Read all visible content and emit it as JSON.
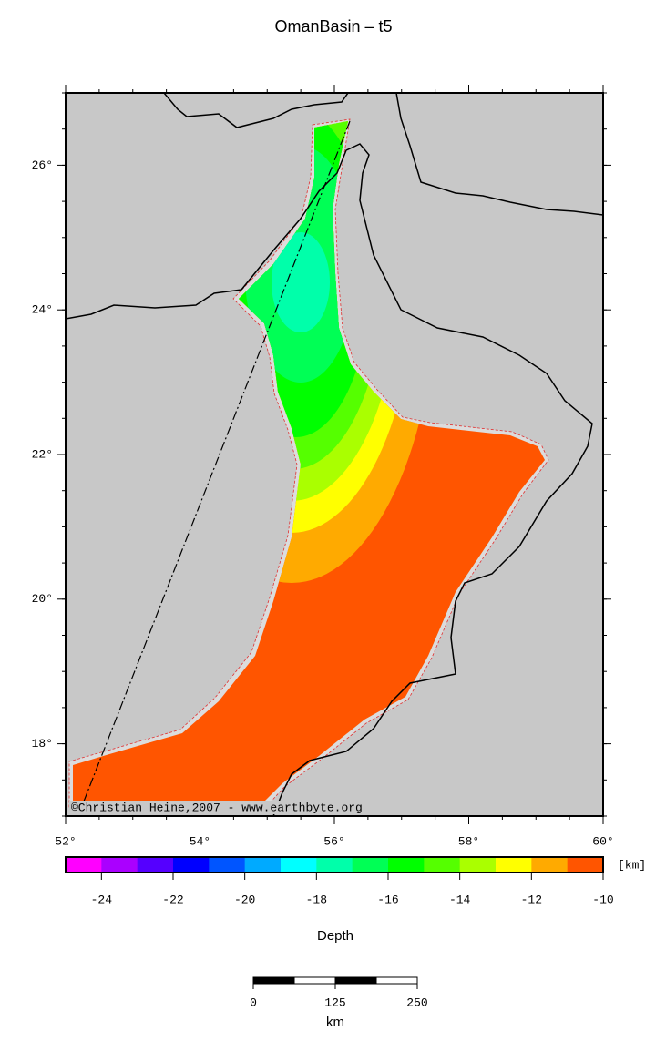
{
  "title": "OmanBasin – t5",
  "map": {
    "xlim": [
      52,
      60
    ],
    "ylim": [
      17,
      27
    ],
    "xticks": [
      {
        "value": 52,
        "label": "52°"
      },
      {
        "value": 54,
        "label": "54°"
      },
      {
        "value": 56,
        "label": "56°"
      },
      {
        "value": 58,
        "label": "58°"
      },
      {
        "value": 60,
        "label": "60°"
      }
    ],
    "yticks": [
      {
        "value": 18,
        "label": "18°"
      },
      {
        "value": 20,
        "label": "20°"
      },
      {
        "value": 22,
        "label": "22°"
      },
      {
        "value": 24,
        "label": "24°"
      },
      {
        "value": 26,
        "label": "26°"
      }
    ],
    "credit": "©Christian Heine,2007 - www.earthbyte.org"
  },
  "colorbar": {
    "clim": [
      -25,
      -10
    ],
    "colors": [
      "#ff00ff",
      "#aa00ff",
      "#5500ff",
      "#0000ff",
      "#0055ff",
      "#00aaff",
      "#00ffff",
      "#00ffaa",
      "#00ff55",
      "#00ff00",
      "#55ff00",
      "#aaff00",
      "#ffff00",
      "#ffaa00",
      "#ff5500"
    ],
    "ticks": [
      -24,
      -22,
      -20,
      -18,
      -16,
      -14,
      -12,
      -10
    ],
    "unit": "[km]",
    "label": "Depth"
  },
  "scalebar": {
    "ticks": [
      0,
      125,
      250
    ],
    "unit": "km"
  }
}
